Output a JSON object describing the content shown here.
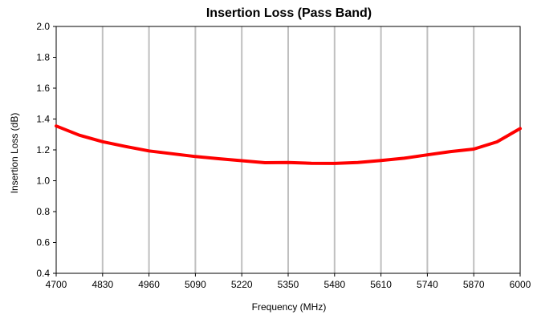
{
  "chart_data": {
    "type": "line",
    "title": "Insertion Loss (Pass Band)",
    "xlabel": "Frequency (MHz)",
    "ylabel": "Insertion Loss (dB)",
    "xlim": [
      4700,
      6000
    ],
    "ylim": [
      0.4,
      2.0
    ],
    "xticks": [
      "4700",
      "4830",
      "4960",
      "5090",
      "5220",
      "5350",
      "5480",
      "5610",
      "5740",
      "5870",
      "6000"
    ],
    "yticks": [
      "0.4",
      "0.6",
      "0.8",
      "1.0",
      "1.2",
      "1.4",
      "1.6",
      "1.8",
      "2.0"
    ],
    "grid": "vertical",
    "series": [
      {
        "color": "#ff0000",
        "x": [
          4700,
          4765,
          4830,
          4895,
          4960,
          5025,
          5090,
          5155,
          5220,
          5285,
          5350,
          5415,
          5480,
          5545,
          5610,
          5675,
          5740,
          5805,
          5870,
          5935,
          6000
        ],
        "y": [
          1.355,
          1.295,
          1.253,
          1.222,
          1.193,
          1.175,
          1.157,
          1.143,
          1.13,
          1.117,
          1.118,
          1.113,
          1.112,
          1.118,
          1.131,
          1.146,
          1.168,
          1.189,
          1.205,
          1.252,
          1.338
        ]
      }
    ]
  }
}
